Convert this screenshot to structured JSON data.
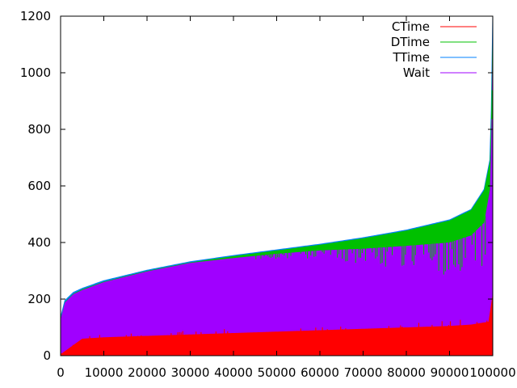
{
  "chart_data": {
    "type": "area",
    "title": "",
    "xlabel": "",
    "ylabel": "",
    "xlim": [
      0,
      100000
    ],
    "ylim": [
      0,
      1200
    ],
    "xticks": [
      "0",
      "10000",
      "20000",
      "30000",
      "40000",
      "50000",
      "60000",
      "70000",
      "80000",
      "90000",
      "100000"
    ],
    "yticks": [
      "0",
      "200",
      "400",
      "600",
      "800",
      "1000",
      "1200"
    ],
    "grid": false,
    "legend_position": "top-right",
    "series": [
      {
        "name": "CTime",
        "color": "#ff0000",
        "x": [
          0,
          5000,
          10000,
          20000,
          30000,
          40000,
          50000,
          60000,
          70000,
          80000,
          90000,
          95000,
          99000,
          100000
        ],
        "values": [
          5,
          60,
          65,
          70,
          75,
          80,
          85,
          90,
          95,
          100,
          105,
          110,
          120,
          220
        ]
      },
      {
        "name": "DTime",
        "color": "#00c000",
        "x": [
          0,
          1000,
          3000,
          5000,
          10000,
          20000,
          30000,
          40000,
          50000,
          60000,
          70000,
          80000,
          90000,
          95000,
          98000,
          99500,
          100000
        ],
        "values": [
          130,
          190,
          220,
          235,
          262,
          300,
          330,
          352,
          372,
          392,
          415,
          442,
          478,
          515,
          585,
          700,
          1200
        ]
      },
      {
        "name": "TTime",
        "color": "#0080ff",
        "x": [
          0,
          1000,
          3000,
          5000,
          10000,
          20000,
          30000,
          40000,
          50000,
          60000,
          70000,
          80000,
          90000,
          95000,
          98000,
          99500,
          100000
        ],
        "values": [
          135,
          195,
          224,
          238,
          265,
          302,
          332,
          354,
          374,
          394,
          417,
          444,
          480,
          517,
          588,
          705,
          1200
        ]
      },
      {
        "name": "Wait",
        "color": "#a000ff",
        "x": [
          0,
          1000,
          3000,
          5000,
          10000,
          20000,
          30000,
          40000,
          50000,
          60000,
          70000,
          80000,
          90000,
          95000,
          98000,
          99500,
          100000
        ],
        "values": [
          128,
          188,
          218,
          232,
          260,
          298,
          328,
          345,
          360,
          372,
          378,
          388,
          400,
          425,
          470,
          600,
          1150
        ]
      }
    ]
  }
}
